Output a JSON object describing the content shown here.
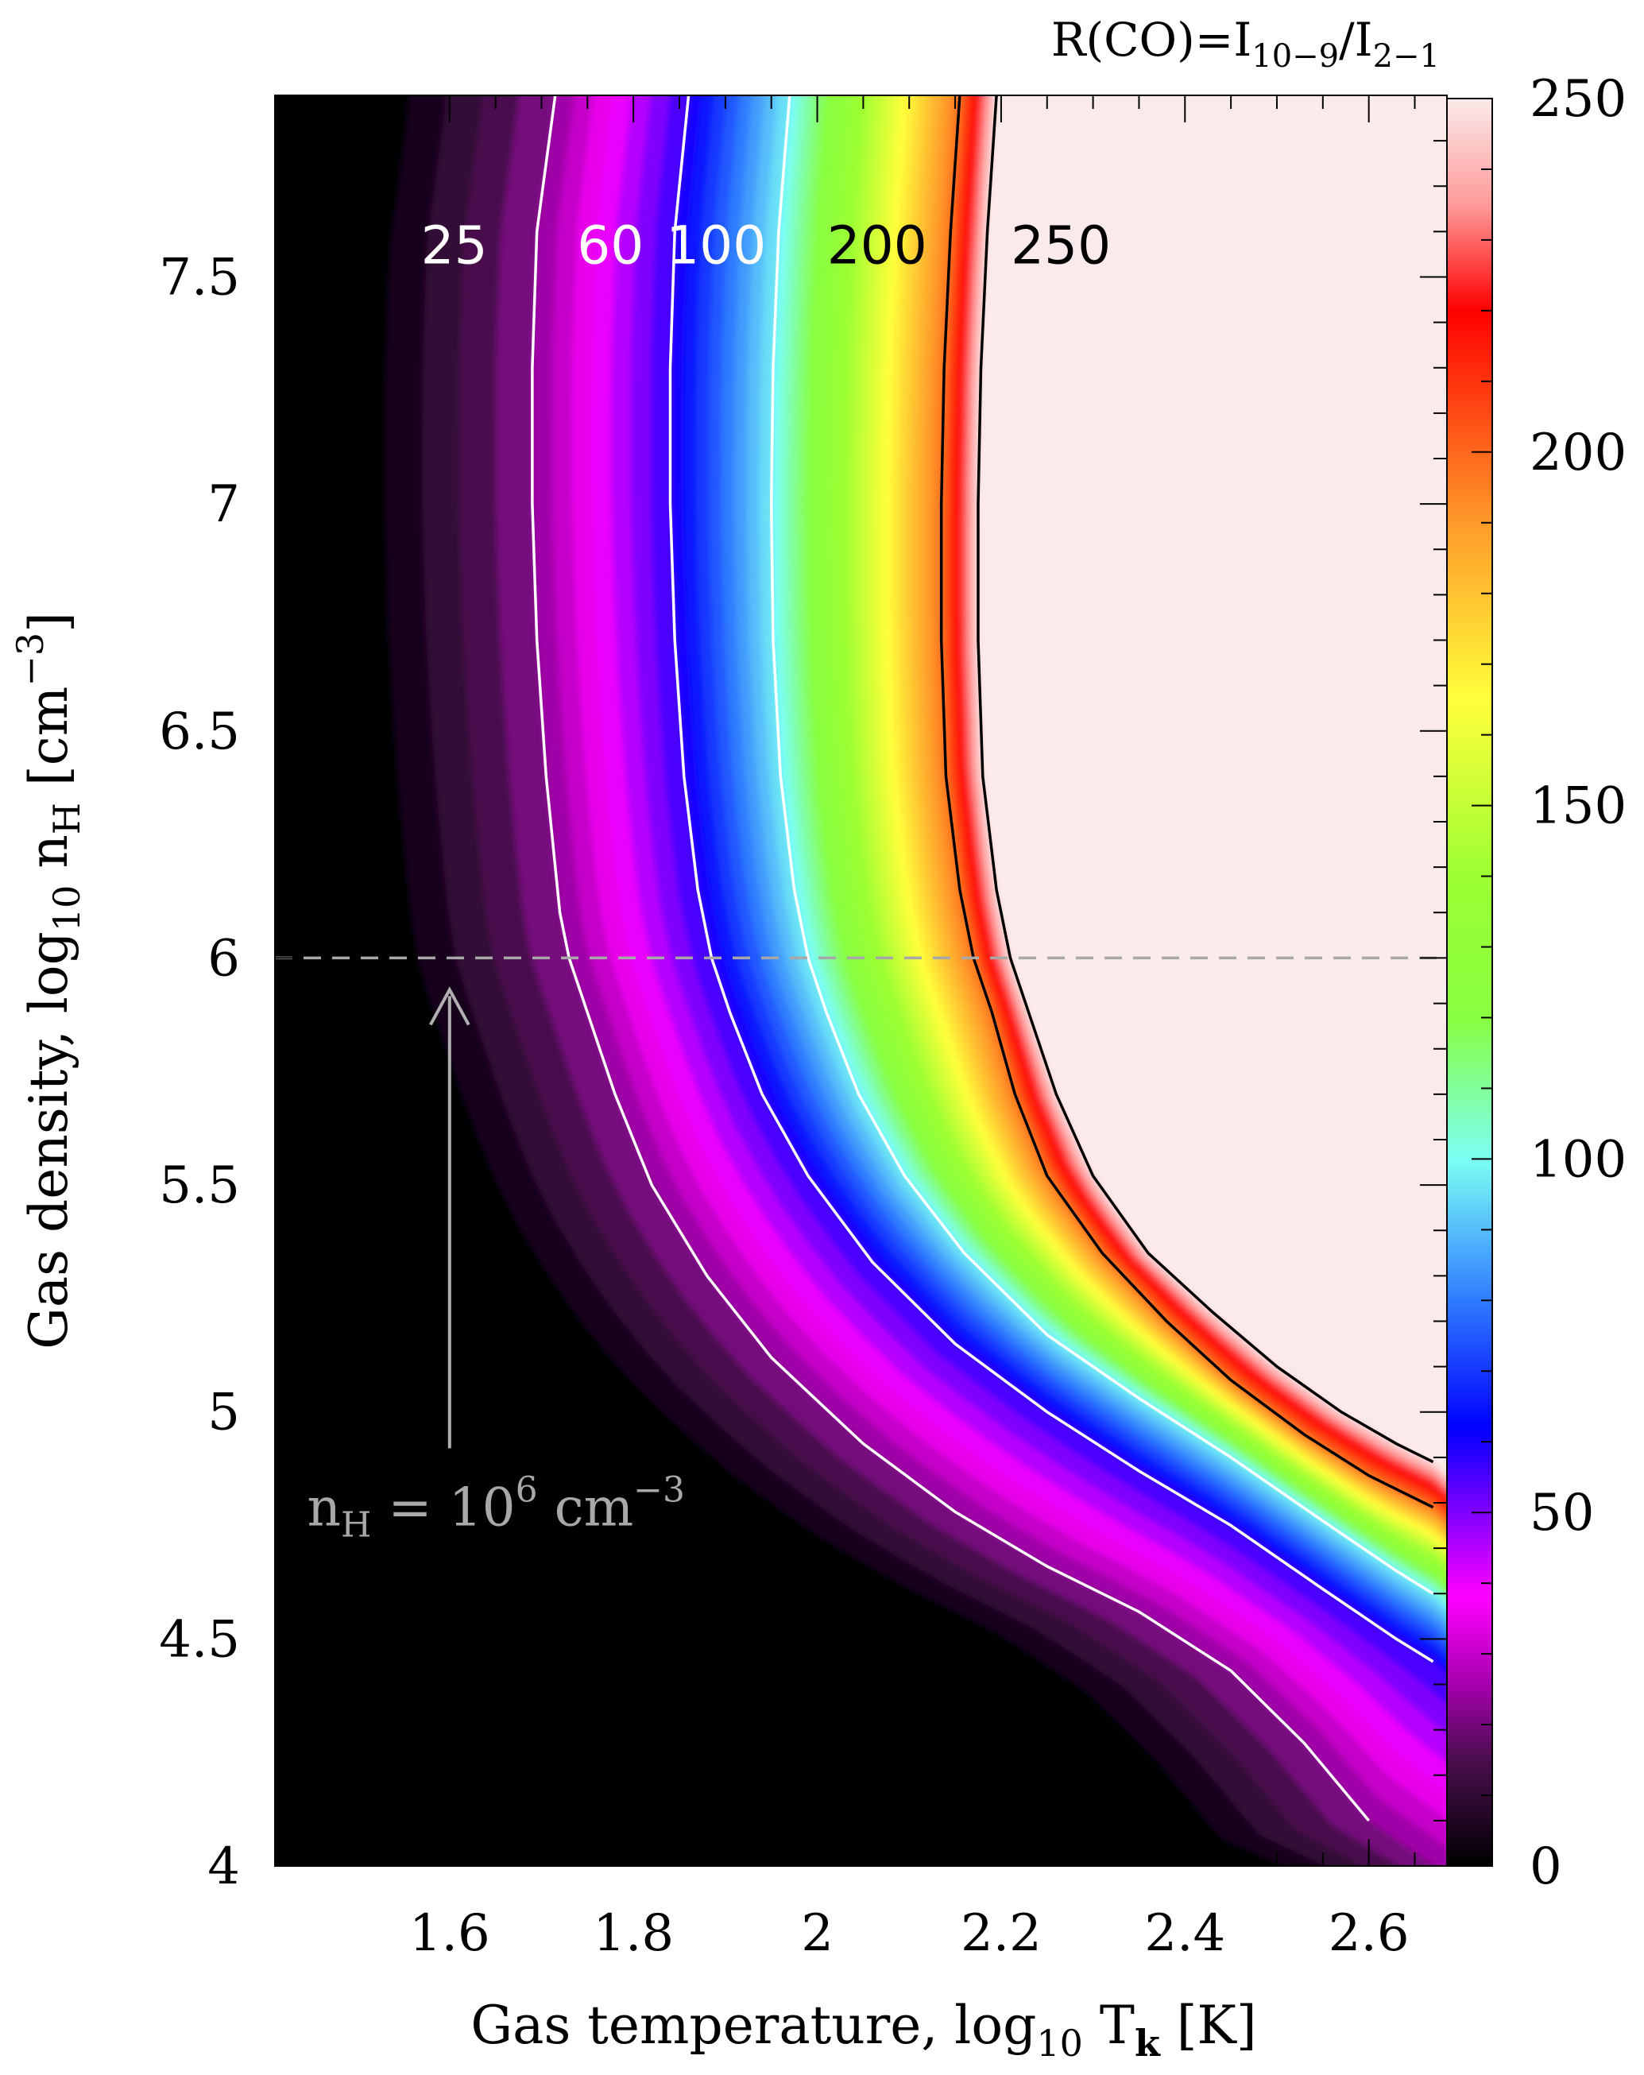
{
  "chart_data": {
    "type": "heatmap",
    "title": "R(CO)=I10−9/I2−1",
    "title_parts": {
      "base": "R(CO)=I",
      "sub1": "10−9",
      "slash": "/I",
      "sub2": "2−1"
    },
    "xlabel": "Gas temperature, log10 Tk [K]",
    "xlabel_parts": {
      "pre": "Gas temperature, log",
      "sub1": "10",
      "mid": " T",
      "sub2": "k",
      "post": " [K]"
    },
    "ylabel": "Gas density, log10 nH [cm−3]",
    "ylabel_parts": {
      "pre": "Gas density, log",
      "sub1": "10",
      "mid": " n",
      "sub2": "H",
      "post1": " [cm",
      "sup": "−3",
      "post2": "]"
    },
    "xlim": [
      1.41,
      2.685
    ],
    "ylim": [
      4.0,
      7.9
    ],
    "x_ticks": [
      {
        "value": 1.6,
        "label": "1.6"
      },
      {
        "value": 1.8,
        "label": "1.8"
      },
      {
        "value": 2.0,
        "label": "2"
      },
      {
        "value": 2.2,
        "label": "2.2"
      },
      {
        "value": 2.4,
        "label": "2.4"
      },
      {
        "value": 2.6,
        "label": "2.6"
      }
    ],
    "y_ticks": [
      {
        "value": 4.0,
        "label": "4"
      },
      {
        "value": 4.5,
        "label": "4.5"
      },
      {
        "value": 5.0,
        "label": "5"
      },
      {
        "value": 5.5,
        "label": "5.5"
      },
      {
        "value": 6.0,
        "label": "6"
      },
      {
        "value": 6.5,
        "label": "6.5"
      },
      {
        "value": 7.0,
        "label": "7"
      },
      {
        "value": 7.5,
        "label": "7.5"
      }
    ],
    "colorbar": {
      "range": [
        0,
        250
      ],
      "ticks": [
        {
          "value": 0,
          "label": "0"
        },
        {
          "value": 50,
          "label": "50"
        },
        {
          "value": 100,
          "label": "100"
        },
        {
          "value": 150,
          "label": "150"
        },
        {
          "value": 200,
          "label": "200"
        },
        {
          "value": 250,
          "label": "250"
        }
      ],
      "stops": [
        {
          "value": 0,
          "color": "#000000"
        },
        {
          "value": 15,
          "color": "#4a0e4e"
        },
        {
          "value": 25,
          "color": "#a000a8"
        },
        {
          "value": 38,
          "color": "#ff00ff"
        },
        {
          "value": 50,
          "color": "#8000ff"
        },
        {
          "value": 62,
          "color": "#0000ff"
        },
        {
          "value": 80,
          "color": "#2f7bff"
        },
        {
          "value": 100,
          "color": "#7cfff4"
        },
        {
          "value": 120,
          "color": "#88ff40"
        },
        {
          "value": 140,
          "color": "#9cff33"
        },
        {
          "value": 165,
          "color": "#ffff3a"
        },
        {
          "value": 190,
          "color": "#ff9a2a"
        },
        {
          "value": 220,
          "color": "#ff0000"
        },
        {
          "value": 235,
          "color": "#ff9a9a"
        },
        {
          "value": 250,
          "color": "#fbeaea"
        }
      ]
    },
    "contours": [
      {
        "level": 25,
        "label": "25",
        "color": "#ffffff",
        "points": [
          [
            1.715,
            7.9
          ],
          [
            1.695,
            7.6
          ],
          [
            1.69,
            7.3
          ],
          [
            1.69,
            7.0
          ],
          [
            1.695,
            6.7
          ],
          [
            1.705,
            6.4
          ],
          [
            1.72,
            6.1
          ],
          [
            1.73,
            6.0
          ],
          [
            1.75,
            5.88
          ],
          [
            1.78,
            5.7
          ],
          [
            1.82,
            5.5
          ],
          [
            1.88,
            5.3
          ],
          [
            1.95,
            5.12
          ],
          [
            2.05,
            4.93
          ],
          [
            2.15,
            4.78
          ],
          [
            2.25,
            4.66
          ],
          [
            2.35,
            4.56
          ],
          [
            2.45,
            4.43
          ],
          [
            2.53,
            4.27
          ],
          [
            2.6,
            4.1
          ]
        ]
      },
      {
        "level": 60,
        "label": "60",
        "color": "#ffffff",
        "points": [
          [
            1.86,
            7.9
          ],
          [
            1.845,
            7.6
          ],
          [
            1.84,
            7.3
          ],
          [
            1.84,
            7.0
          ],
          [
            1.845,
            6.7
          ],
          [
            1.855,
            6.4
          ],
          [
            1.87,
            6.15
          ],
          [
            1.885,
            6.0
          ],
          [
            1.905,
            5.88
          ],
          [
            1.94,
            5.7
          ],
          [
            1.99,
            5.52
          ],
          [
            2.06,
            5.33
          ],
          [
            2.15,
            5.15
          ],
          [
            2.25,
            5.0
          ],
          [
            2.35,
            4.87
          ],
          [
            2.45,
            4.75
          ],
          [
            2.55,
            4.61
          ],
          [
            2.63,
            4.5
          ],
          [
            2.67,
            4.45
          ]
        ]
      },
      {
        "level": 100,
        "label": "100",
        "color": "#ffffff",
        "points": [
          [
            1.97,
            7.9
          ],
          [
            1.958,
            7.6
          ],
          [
            1.952,
            7.3
          ],
          [
            1.95,
            7.0
          ],
          [
            1.952,
            6.7
          ],
          [
            1.96,
            6.4
          ],
          [
            1.975,
            6.15
          ],
          [
            1.99,
            6.0
          ],
          [
            2.01,
            5.88
          ],
          [
            2.045,
            5.7
          ],
          [
            2.095,
            5.52
          ],
          [
            2.16,
            5.35
          ],
          [
            2.25,
            5.17
          ],
          [
            2.35,
            5.03
          ],
          [
            2.45,
            4.9
          ],
          [
            2.55,
            4.76
          ],
          [
            2.63,
            4.65
          ],
          [
            2.67,
            4.6
          ]
        ]
      },
      {
        "level": 200,
        "label": "200",
        "color": "#000000",
        "points": [
          [
            2.155,
            7.9
          ],
          [
            2.145,
            7.6
          ],
          [
            2.138,
            7.3
          ],
          [
            2.135,
            7.0
          ],
          [
            2.135,
            6.7
          ],
          [
            2.14,
            6.4
          ],
          [
            2.155,
            6.15
          ],
          [
            2.17,
            6.0
          ],
          [
            2.19,
            5.88
          ],
          [
            2.215,
            5.7
          ],
          [
            2.25,
            5.52
          ],
          [
            2.31,
            5.35
          ],
          [
            2.38,
            5.2
          ],
          [
            2.45,
            5.07
          ],
          [
            2.53,
            4.95
          ],
          [
            2.6,
            4.86
          ],
          [
            2.67,
            4.79
          ]
        ]
      },
      {
        "level": 250,
        "label": "250",
        "color": "#000000",
        "points": [
          [
            2.195,
            7.9
          ],
          [
            2.185,
            7.6
          ],
          [
            2.178,
            7.3
          ],
          [
            2.175,
            7.0
          ],
          [
            2.175,
            6.7
          ],
          [
            2.18,
            6.4
          ],
          [
            2.195,
            6.15
          ],
          [
            2.21,
            6.0
          ],
          [
            2.23,
            5.88
          ],
          [
            2.26,
            5.7
          ],
          [
            2.3,
            5.52
          ],
          [
            2.36,
            5.35
          ],
          [
            2.43,
            5.22
          ],
          [
            2.5,
            5.1
          ],
          [
            2.57,
            5.0
          ],
          [
            2.63,
            4.93
          ],
          [
            2.67,
            4.89
          ]
        ]
      }
    ],
    "contour_label_y": 7.53,
    "contour_label_x": [
      1.605,
      1.775,
      1.89,
      2.065,
      2.265
    ],
    "annotations": {
      "reference_line": {
        "y": 6.0,
        "color": "#a8a8a8",
        "style": "dashed"
      },
      "arrow": {
        "x": 1.6,
        "from_y": 4.92,
        "to_y": 5.93,
        "color": "#b0b0b0"
      },
      "text": {
        "x": 1.445,
        "y": 4.75,
        "color": "#a8a8a8",
        "base": "n",
        "sub": "H",
        "mid": " = 10",
        "sup1": "6",
        "unit": " cm",
        "sup2": "−3"
      }
    }
  }
}
